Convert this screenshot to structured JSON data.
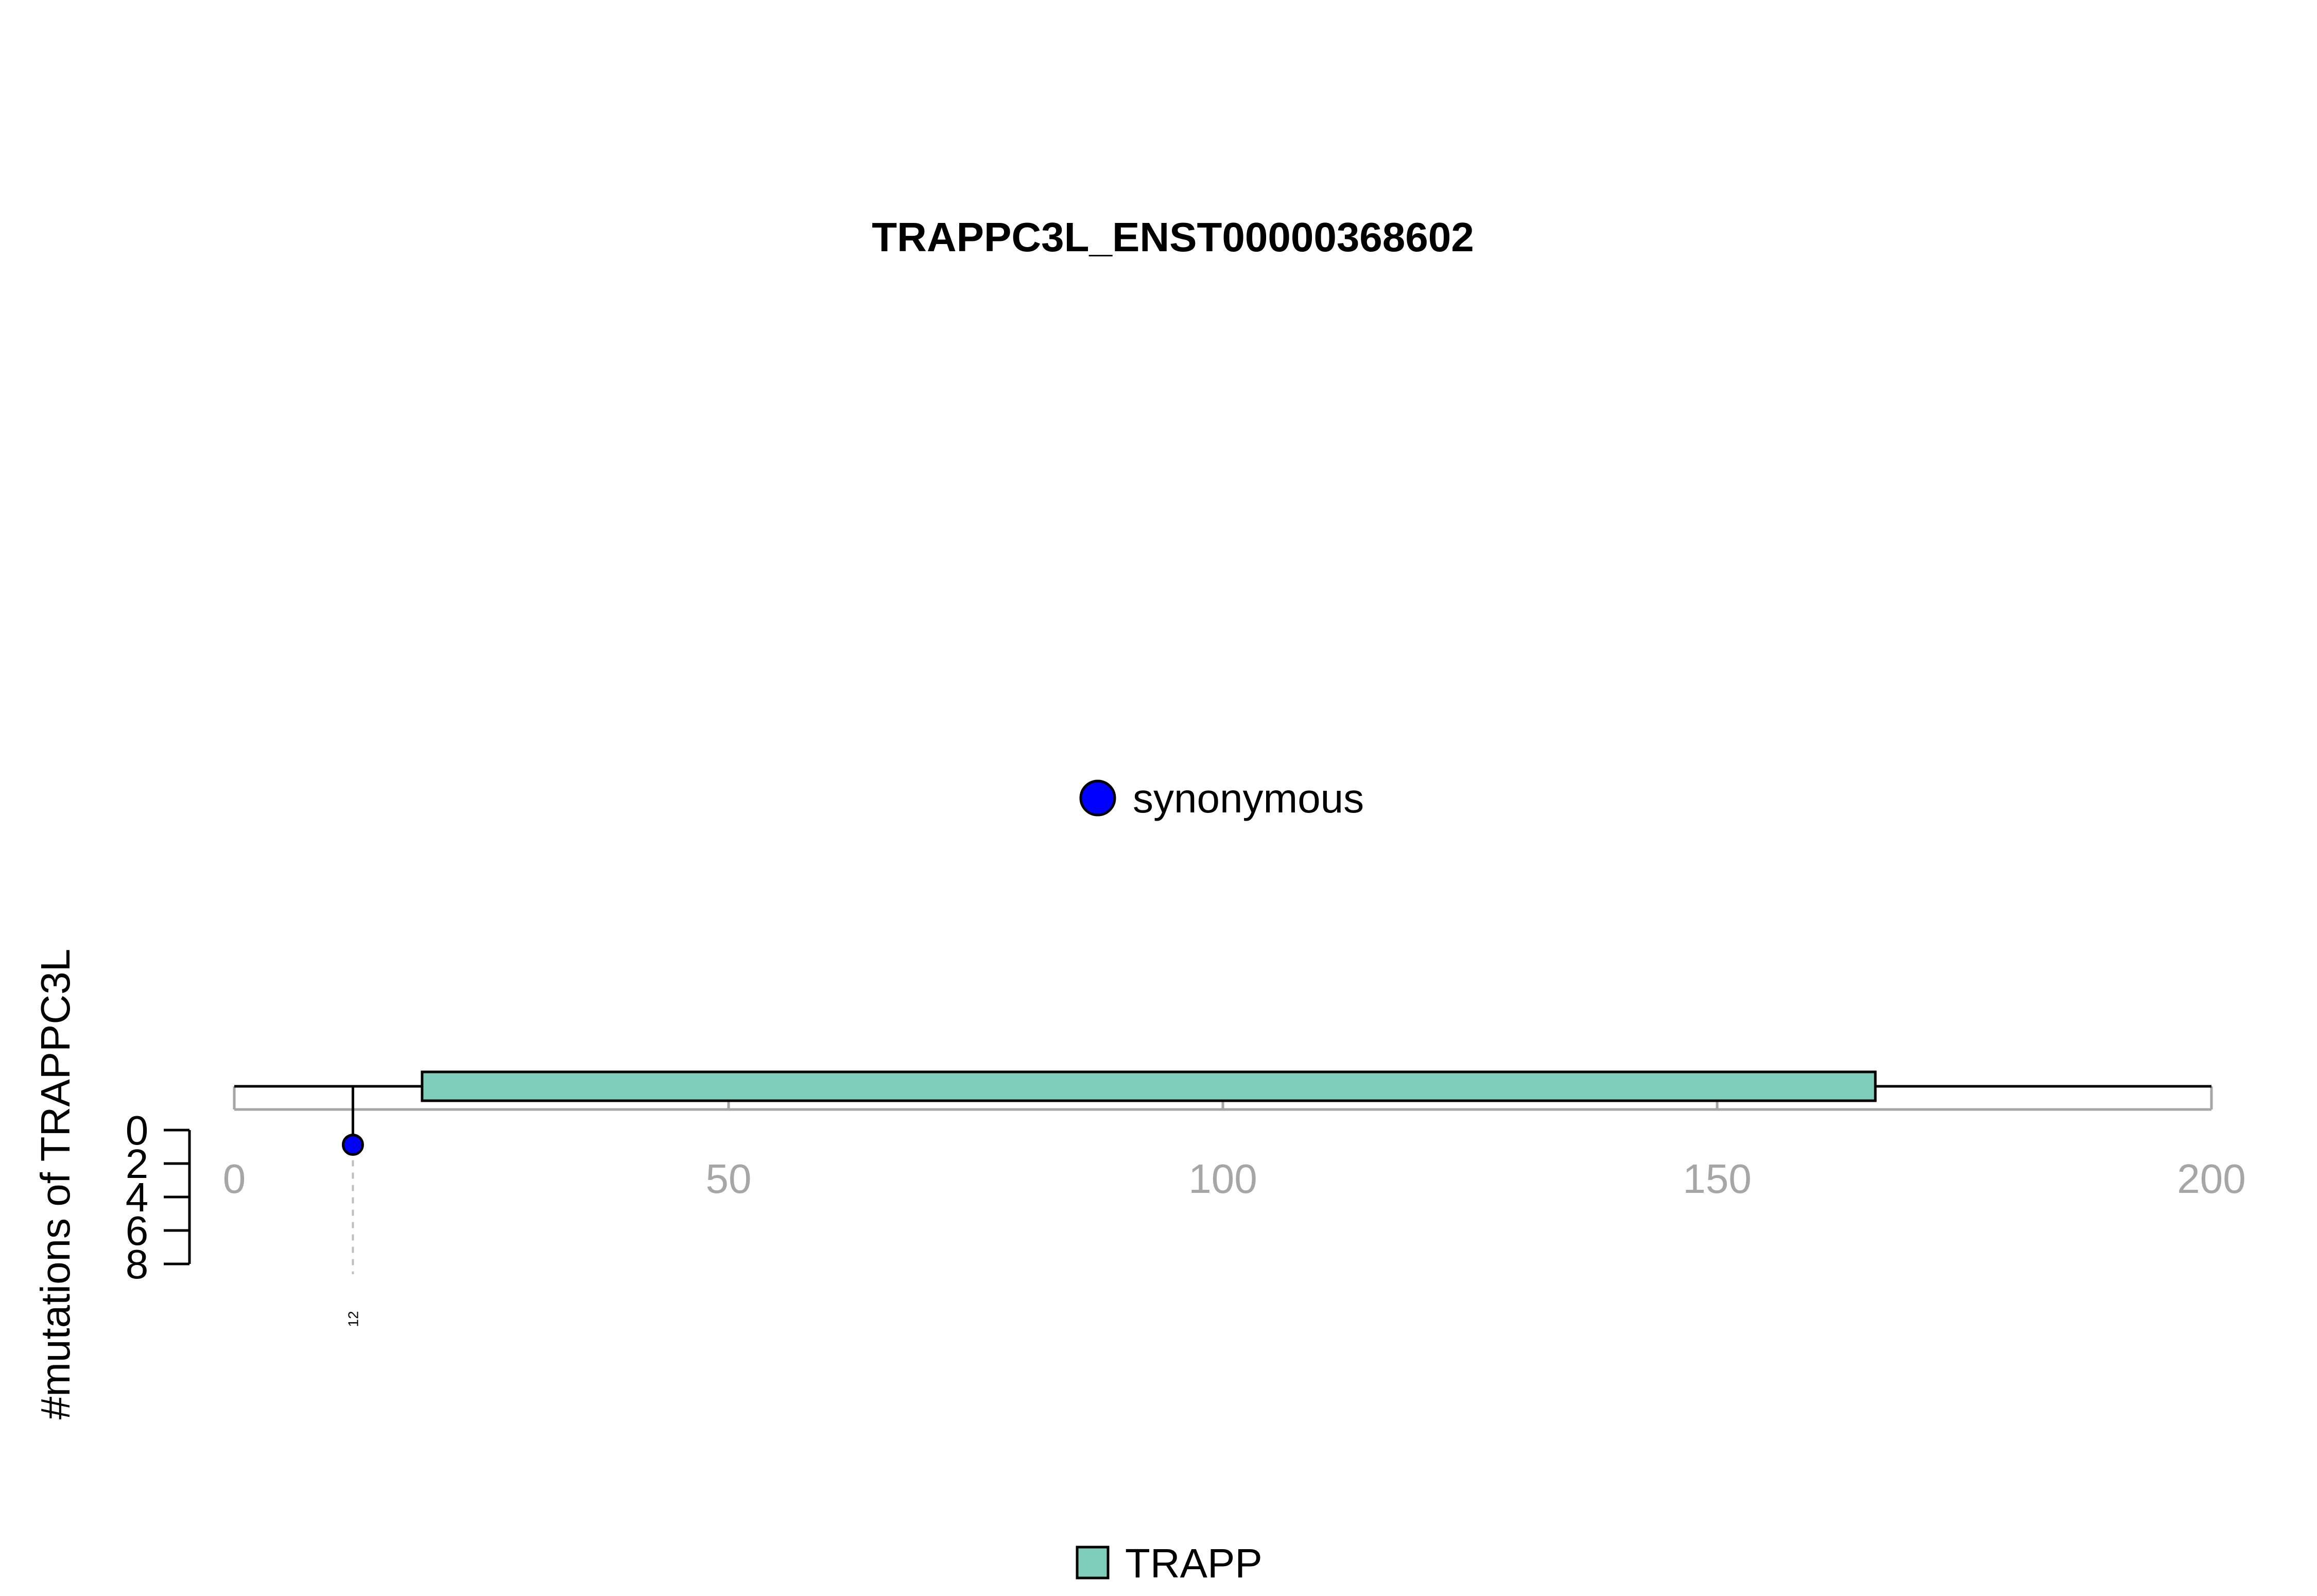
{
  "chart_data": {
    "type": "lollipop",
    "title": "TRAPPC3L_ENST00000368602",
    "ylabel": "#mutations of TRAPPC3L",
    "protein_length": 200,
    "xlim": [
      0,
      200
    ],
    "x_ticks": [
      0,
      50,
      100,
      150,
      200
    ],
    "ylim": [
      0,
      8
    ],
    "y_ticks": [
      0,
      2,
      4,
      6,
      8
    ],
    "y_direction": "downward",
    "legend_mutation": {
      "label": "synonymous",
      "color": "#0000ff"
    },
    "legend_domain": {
      "label": "TRAPP",
      "color": "#7fcdbb"
    },
    "domains": [
      {
        "name": "TRAPP",
        "start": 19,
        "end": 166,
        "color": "#7fcdbb"
      }
    ],
    "mutations": [
      {
        "position": 12,
        "count": 1,
        "type": "synonymous",
        "label": "12",
        "color": "#0000ff"
      }
    ]
  }
}
